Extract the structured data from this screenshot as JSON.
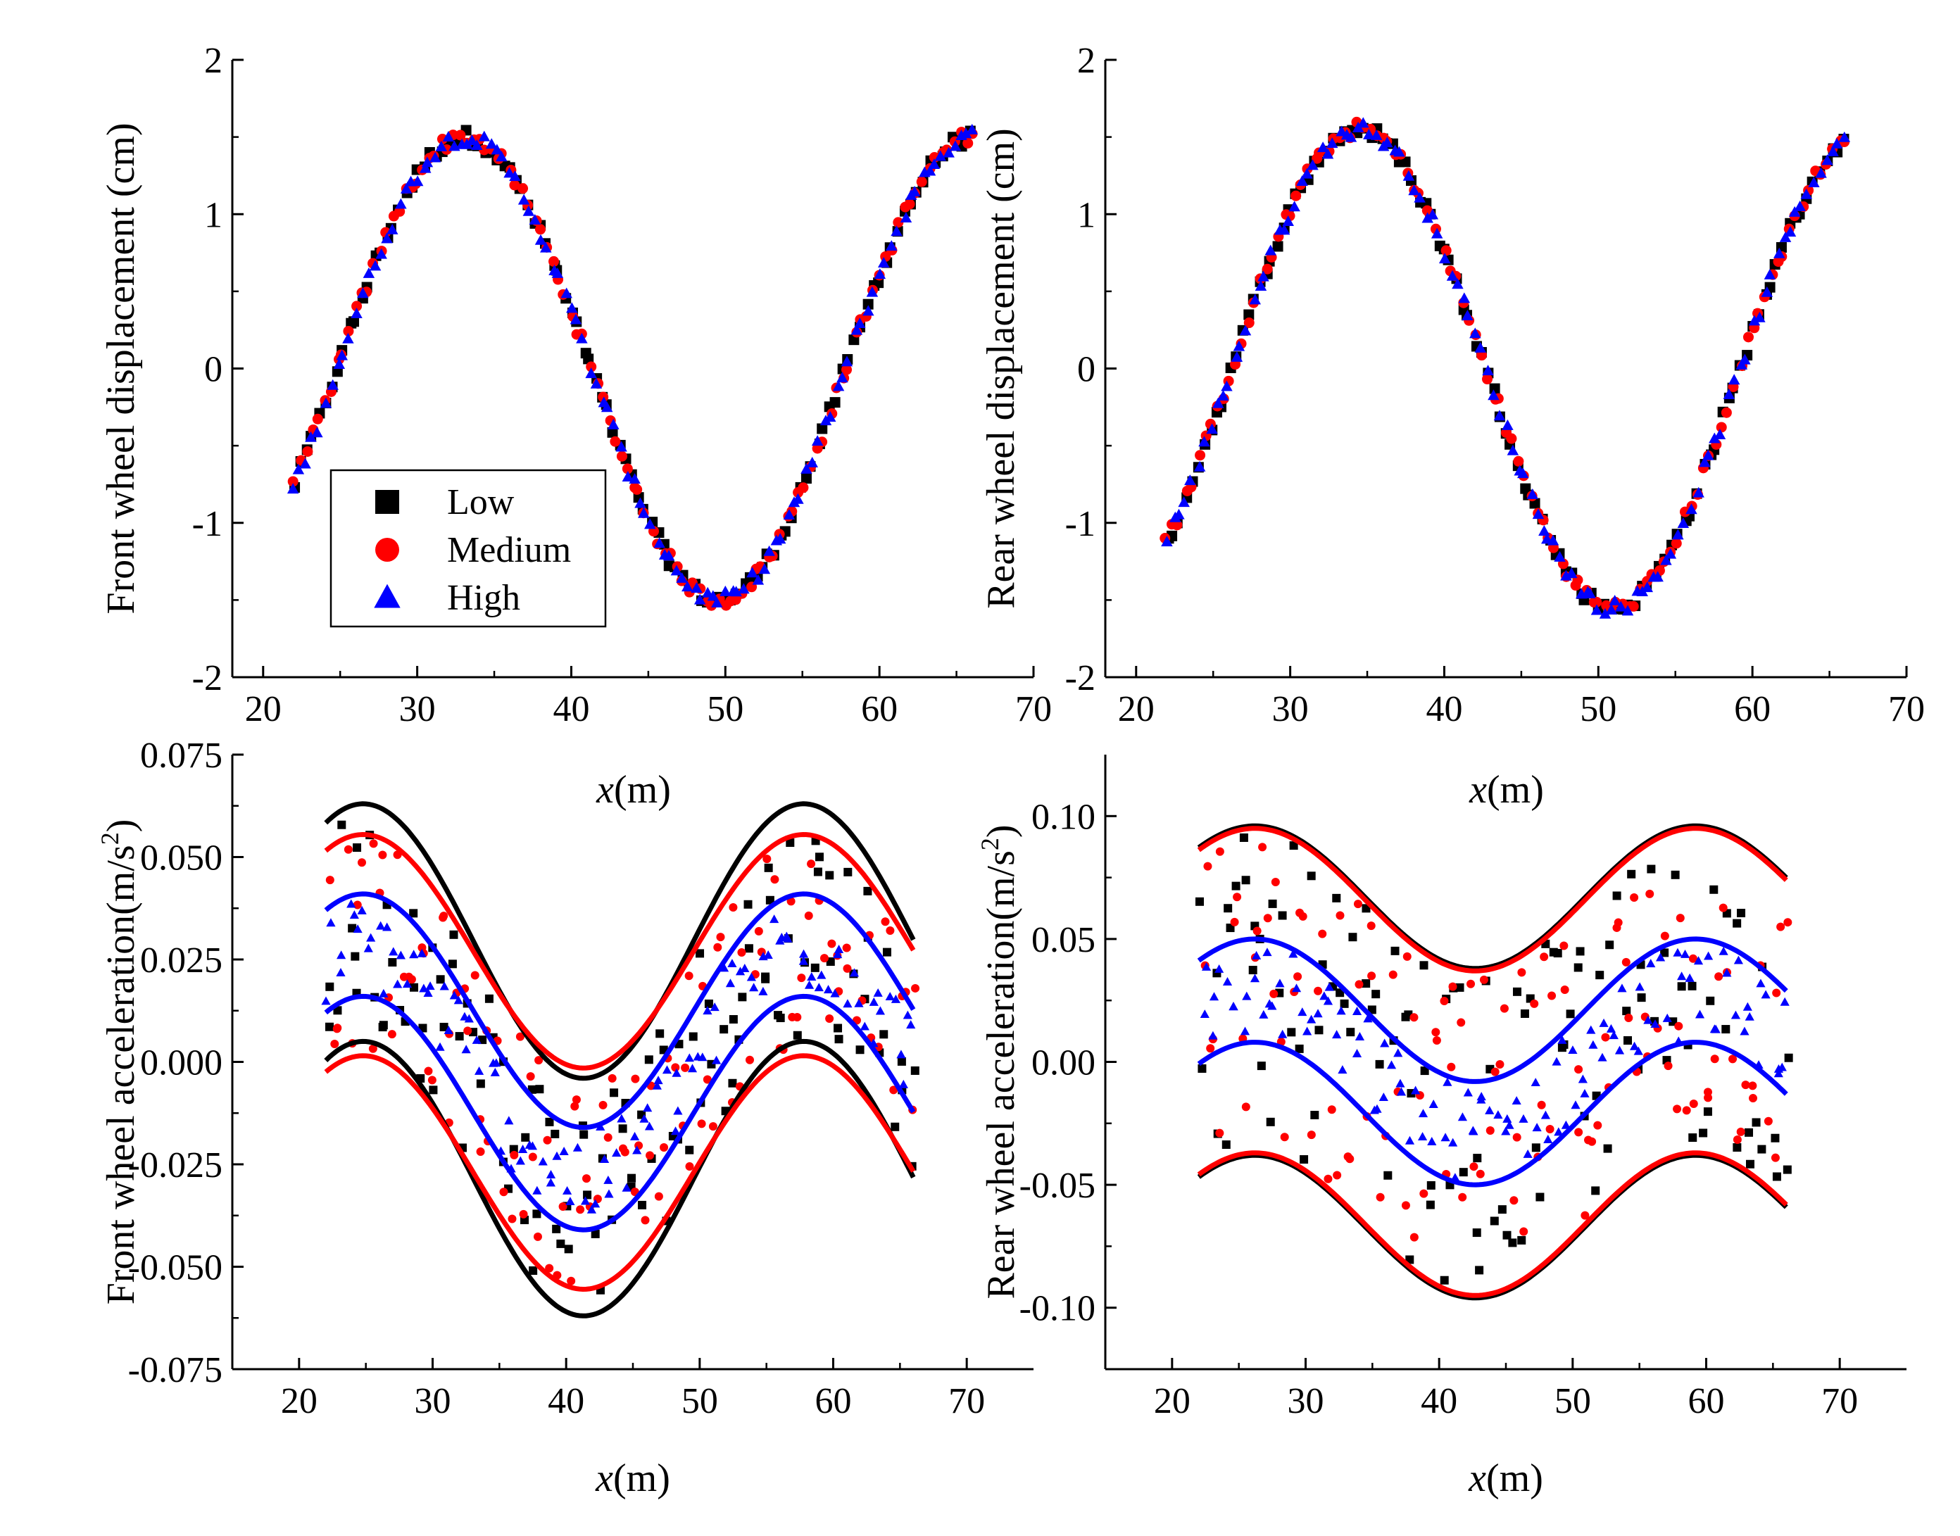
{
  "chart_data": [
    {
      "id": "front_disp",
      "type": "scatter",
      "ylabel": "Front wheel displacement (cm)",
      "xlabel": "",
      "xlim": [
        18,
        70
      ],
      "ylim": [
        -2,
        2
      ],
      "xticks": [
        20,
        30,
        40,
        50,
        60,
        70
      ],
      "yticks": [
        -2,
        -1,
        0,
        1,
        2
      ],
      "ytick_labels": [
        "-2",
        "-1",
        "0",
        "1",
        "2"
      ],
      "scatter_model": {
        "x_start": 22,
        "x_end": 66,
        "step": 0.4,
        "amp": 1.5,
        "center": 0,
        "phase_x": 24.8,
        "period": 33
      },
      "series": [
        {
          "name": "Low",
          "color": "#000000",
          "marker": "square",
          "values_desc": "y = 1.5*sin(2π(x-24.8)/33)"
        },
        {
          "name": "Medium",
          "color": "#ff0000",
          "marker": "circle"
        },
        {
          "name": "High",
          "color": "#0000ff",
          "marker": "triangle"
        }
      ],
      "legend": {
        "position": "lower-left",
        "entries": [
          "Low",
          "Medium",
          "High"
        ]
      },
      "grid": false
    },
    {
      "id": "rear_disp",
      "type": "scatter",
      "ylabel": "Rear wheel displacement (cm)",
      "xlabel": "",
      "xlim": [
        18,
        70
      ],
      "ylim": [
        -2,
        2
      ],
      "xticks": [
        20,
        30,
        40,
        50,
        60,
        70
      ],
      "yticks": [
        -2,
        -1,
        0,
        1,
        2
      ],
      "ytick_labels": [
        "-2",
        "-1",
        "0",
        "1",
        "2"
      ],
      "scatter_model": {
        "x_start": 22,
        "x_end": 66,
        "step": 0.4,
        "amp": 1.55,
        "center": 0,
        "phase_x": 26.2,
        "period": 33
      },
      "series": [
        {
          "name": "Low",
          "color": "#000000",
          "marker": "square"
        },
        {
          "name": "Medium",
          "color": "#ff0000",
          "marker": "circle"
        },
        {
          "name": "High",
          "color": "#0000ff",
          "marker": "triangle"
        }
      ],
      "grid": false
    },
    {
      "id": "front_acc",
      "type": "scatter",
      "ylabel": "Front wheel acceleration(m/s",
      "ylabel_sup": "2",
      "ylabel_end": ")",
      "xlabel": "x",
      "xlabel_unit": "(m)",
      "xlim": [
        15,
        75
      ],
      "ylim": [
        -0.075,
        0.075
      ],
      "xticks": [
        20,
        30,
        40,
        50,
        60,
        70
      ],
      "yticks": [
        -0.075,
        -0.05,
        -0.025,
        0,
        0.025,
        0.05,
        0.075
      ],
      "ytick_labels": [
        "-0.075",
        "-0.050",
        "-0.025",
        "0.000",
        "0.025",
        "0.050",
        "0.075"
      ],
      "envelope_model": {
        "x_start": 22,
        "x_end": 66,
        "period": 33,
        "peak_x": 24.8
      },
      "envelopes": [
        {
          "series": "Low",
          "color": "#000000",
          "center": 0.0005,
          "amp": 0.0335,
          "half_width": 0.029
        },
        {
          "series": "Medium",
          "color": "#ff0000",
          "center": 0.0,
          "amp": 0.0285,
          "half_width": 0.027
        },
        {
          "series": "High",
          "color": "#0000ff",
          "center": 0.0,
          "amp": 0.0285,
          "half_width": 0.0125
        }
      ],
      "series": [
        {
          "name": "Low",
          "color": "#000000",
          "marker": "square"
        },
        {
          "name": "Medium",
          "color": "#ff0000",
          "marker": "circle"
        },
        {
          "name": "High",
          "color": "#0000ff",
          "marker": "triangle"
        }
      ],
      "grid": false
    },
    {
      "id": "rear_acc",
      "type": "scatter",
      "ylabel": "Rear wheel acceleration(m/s",
      "ylabel_sup": "2",
      "ylabel_end": ")",
      "xlabel": "x",
      "xlabel_unit": "(m)",
      "xlim": [
        15,
        75
      ],
      "ylim": [
        -0.125,
        0.125
      ],
      "xticks": [
        20,
        30,
        40,
        50,
        60,
        70
      ],
      "yticks": [
        -0.1,
        -0.05,
        0,
        0.05,
        0.1
      ],
      "ytick_labels": [
        "-0.10",
        "-0.05",
        "0.00",
        "0.05",
        "0.10"
      ],
      "envelope_model": {
        "x_start": 22,
        "x_end": 66,
        "period": 33,
        "peak_x": 26.2
      },
      "envelopes": [
        {
          "series": "Low",
          "color": "#000000",
          "center": 0.0,
          "amp": 0.029,
          "half_width": 0.067
        },
        {
          "series": "Medium",
          "color": "#ff0000",
          "center": 0.0,
          "amp": 0.029,
          "half_width": 0.066
        },
        {
          "series": "High",
          "color": "#0000ff",
          "center": 0.0,
          "amp": 0.029,
          "half_width": 0.021
        }
      ],
      "series": [
        {
          "name": "Low",
          "color": "#000000",
          "marker": "square"
        },
        {
          "name": "Medium",
          "color": "#ff0000",
          "marker": "circle"
        },
        {
          "name": "High",
          "color": "#0000ff",
          "marker": "triangle"
        }
      ],
      "grid": false
    }
  ],
  "shared_xlabel": {
    "var": "x",
    "unit": "(m)"
  }
}
